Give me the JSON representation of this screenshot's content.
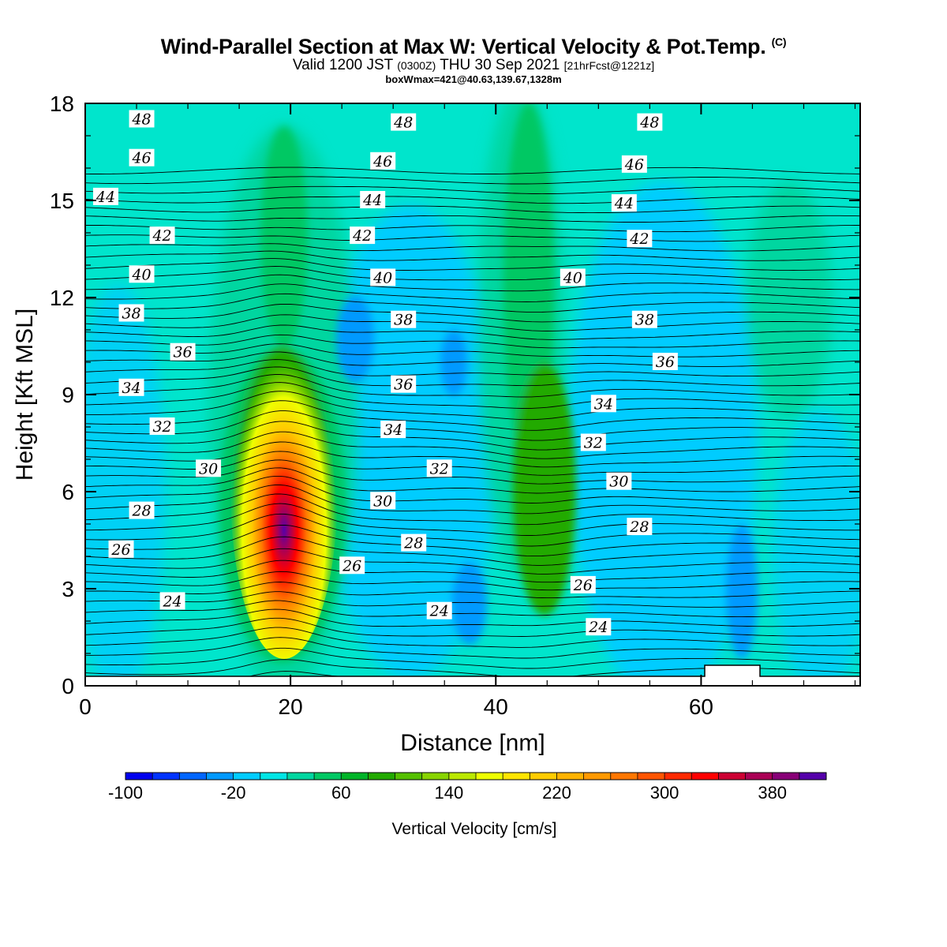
{
  "title_main": "Wind-Parallel Section at Max W: Vertical Velocity & Pot.Temp.",
  "title_copyright": "(C)",
  "title_valid_a": "Valid 1200 JST",
  "title_valid_b": "(0300Z)",
  "title_valid_c": "THU 30 Sep 2021",
  "title_valid_d": "[21hrFcst@1221z]",
  "title_box": "boxWmax=421@40.63,139.67,1328m",
  "chart_data": {
    "type": "heatmap",
    "xlabel": "Distance [nm]",
    "ylabel": "Height [Kft MSL]",
    "xlim": [
      0,
      75.5
    ],
    "ylim": [
      0,
      18
    ],
    "xticks": [
      0,
      20,
      40,
      60
    ],
    "yticks": [
      0,
      3,
      6,
      9,
      12,
      15,
      18
    ],
    "colorbar": {
      "label": "Vertical Velocity [cm/s]",
      "min": -100,
      "max": 420,
      "step": 20,
      "tick_labels": [
        "-100",
        "-20",
        "60",
        "140",
        "220",
        "300",
        "380"
      ],
      "colors": [
        "#0000ee",
        "#0033ff",
        "#0066ff",
        "#0099ff",
        "#00ccff",
        "#00e5e5",
        "#00d6a0",
        "#00c864",
        "#00b428",
        "#22aa00",
        "#55c000",
        "#88d400",
        "#bbe800",
        "#eeff00",
        "#ffe500",
        "#ffcc00",
        "#ffb300",
        "#ff9900",
        "#ff7700",
        "#ff5500",
        "#ff2a00",
        "#ff0000",
        "#cc0033",
        "#aa0055",
        "#880077",
        "#5500aa"
      ]
    },
    "series": [
      {
        "type": "contour",
        "values": [
          22,
          24,
          26,
          28,
          30,
          32,
          34,
          36,
          38,
          40,
          42,
          44,
          46,
          48
        ],
        "labels": [
          {
            "x": 5.5,
            "y": 17.5,
            "text": "48"
          },
          {
            "x": 31,
            "y": 17.4,
            "text": "48"
          },
          {
            "x": 55,
            "y": 17.4,
            "text": "48"
          },
          {
            "x": 5.5,
            "y": 16.3,
            "text": "46"
          },
          {
            "x": 29,
            "y": 16.2,
            "text": "46"
          },
          {
            "x": 53.5,
            "y": 16.1,
            "text": "46"
          },
          {
            "x": 2,
            "y": 15.1,
            "text": "44"
          },
          {
            "x": 28,
            "y": 15.0,
            "text": "44"
          },
          {
            "x": 52.5,
            "y": 14.9,
            "text": "44"
          },
          {
            "x": 7.5,
            "y": 13.9,
            "text": "42"
          },
          {
            "x": 27,
            "y": 13.9,
            "text": "42"
          },
          {
            "x": 54,
            "y": 13.8,
            "text": "42"
          },
          {
            "x": 5.5,
            "y": 12.7,
            "text": "40"
          },
          {
            "x": 29,
            "y": 12.6,
            "text": "40"
          },
          {
            "x": 47.5,
            "y": 12.6,
            "text": "40"
          },
          {
            "x": 4.5,
            "y": 11.5,
            "text": "38"
          },
          {
            "x": 31,
            "y": 11.3,
            "text": "38"
          },
          {
            "x": 54.5,
            "y": 11.3,
            "text": "38"
          },
          {
            "x": 9.5,
            "y": 10.3,
            "text": "36"
          },
          {
            "x": 31,
            "y": 9.3,
            "text": "36"
          },
          {
            "x": 56.5,
            "y": 10.0,
            "text": "36"
          },
          {
            "x": 4.5,
            "y": 9.2,
            "text": "34"
          },
          {
            "x": 30,
            "y": 7.9,
            "text": "34"
          },
          {
            "x": 50.5,
            "y": 8.7,
            "text": "34"
          },
          {
            "x": 7.5,
            "y": 8.0,
            "text": "32"
          },
          {
            "x": 34.5,
            "y": 6.7,
            "text": "32"
          },
          {
            "x": 49.5,
            "y": 7.5,
            "text": "32"
          },
          {
            "x": 12,
            "y": 6.7,
            "text": "30"
          },
          {
            "x": 29,
            "y": 5.7,
            "text": "30"
          },
          {
            "x": 52,
            "y": 6.3,
            "text": "30"
          },
          {
            "x": 5.5,
            "y": 5.4,
            "text": "28"
          },
          {
            "x": 32,
            "y": 4.4,
            "text": "28"
          },
          {
            "x": 54,
            "y": 4.9,
            "text": "28"
          },
          {
            "x": 3.5,
            "y": 4.2,
            "text": "26"
          },
          {
            "x": 26,
            "y": 3.7,
            "text": "26"
          },
          {
            "x": 48.5,
            "y": 3.1,
            "text": "26"
          },
          {
            "x": 8.5,
            "y": 2.6,
            "text": "24"
          },
          {
            "x": 34.5,
            "y": 2.3,
            "text": "24"
          },
          {
            "x": 50,
            "y": 1.8,
            "text": "24"
          }
        ]
      }
    ]
  }
}
